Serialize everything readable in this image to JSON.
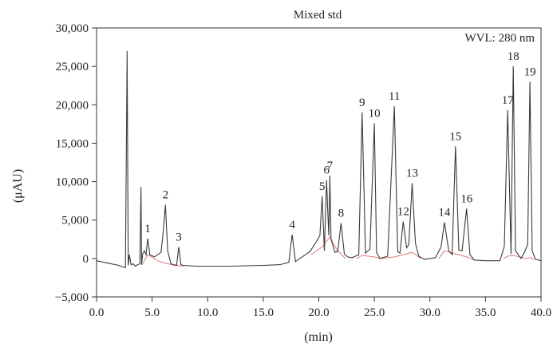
{
  "chart_data": {
    "type": "line",
    "title": "Mixed std",
    "annotation": "WVL: 280 nm",
    "xlabel": "(min)",
    "ylabel": "(μAU)",
    "xlim": [
      0,
      40
    ],
    "ylim": [
      -5000,
      30000
    ],
    "x_ticks": [
      "0.0",
      "5.0",
      "10.0",
      "15.0",
      "20.0",
      "25.0",
      "30.0",
      "35.0",
      "40.0"
    ],
    "x_tick_values": [
      0,
      5,
      10,
      15,
      20,
      25,
      30,
      35,
      40
    ],
    "y_ticks": [
      "−5,000",
      "0",
      "5,000",
      "10,000",
      "15,000",
      "20,000",
      "25,000",
      "30,000"
    ],
    "y_tick_values": [
      -5000,
      0,
      5000,
      10000,
      15000,
      20000,
      25000,
      30000
    ],
    "grid": false,
    "series": [
      {
        "x": [
          0.0,
          1.0,
          2.0,
          2.6,
          2.75,
          2.85,
          2.95,
          3.1,
          3.3,
          3.5,
          3.7,
          3.9,
          4.0,
          4.05,
          4.15,
          4.3,
          4.45,
          4.6,
          4.8,
          5.2,
          5.8,
          6.0,
          6.2,
          6.4,
          6.7,
          7.2,
          7.4,
          7.6,
          7.8,
          9.0,
          12.0,
          15.0,
          16.5,
          17.3,
          17.6,
          17.9,
          18.5,
          19.2,
          19.7,
          20.1,
          20.3,
          20.5,
          20.7,
          20.9,
          21.0,
          21.1,
          21.25,
          21.45,
          21.7,
          22.0,
          22.3,
          22.6,
          23.0,
          23.6,
          23.9,
          24.2,
          24.6,
          25.0,
          25.2,
          25.5,
          26.2,
          26.8,
          27.1,
          27.3,
          27.6,
          27.9,
          28.1,
          28.4,
          28.7,
          29.0,
          29.5,
          30.5,
          31.0,
          31.3,
          31.7,
          32.0,
          32.3,
          32.6,
          32.9,
          33.3,
          33.6,
          34.0,
          35.0,
          36.3,
          36.7,
          37.0,
          37.3,
          37.5,
          37.7,
          38.2,
          38.5,
          38.8,
          39.0,
          39.2,
          39.5,
          40.0
        ],
        "values": [
          -300,
          -600,
          -900,
          -1200,
          27000,
          -900,
          500,
          -800,
          -700,
          -1000,
          -800,
          -700,
          9300,
          -800,
          600,
          1000,
          500,
          2600,
          500,
          200,
          800,
          3500,
          7000,
          1000,
          -700,
          -900,
          1500,
          -800,
          -900,
          -1000,
          -1000,
          -900,
          -800,
          -500,
          3100,
          -400,
          200,
          900,
          2000,
          3000,
          8100,
          1000,
          10200,
          3000,
          10800,
          2500,
          1800,
          800,
          900,
          4600,
          600,
          200,
          100,
          500,
          19000,
          700,
          1200,
          17600,
          800,
          0,
          300,
          19800,
          900,
          700,
          4800,
          1400,
          1800,
          9800,
          2000,
          300,
          -100,
          100,
          1500,
          4700,
          1000,
          500,
          14600,
          1100,
          1000,
          6500,
          500,
          -200,
          -300,
          -300,
          1600,
          19300,
          600,
          25000,
          1000,
          0,
          800,
          1800,
          23000,
          1000,
          -100,
          -300
        ]
      }
    ],
    "peaks": [
      {
        "label": "1",
        "x": 4.6,
        "y": 2600
      },
      {
        "label": "2",
        "x": 6.2,
        "y": 7000
      },
      {
        "label": "3",
        "x": 7.4,
        "y": 1500
      },
      {
        "label": "4",
        "x": 17.6,
        "y": 3100
      },
      {
        "label": "5",
        "x": 20.3,
        "y": 8100
      },
      {
        "label": "6",
        "x": 20.7,
        "y": 10200
      },
      {
        "label": "7",
        "x": 21.0,
        "y": 10800
      },
      {
        "label": "8",
        "x": 22.0,
        "y": 4600
      },
      {
        "label": "9",
        "x": 23.9,
        "y": 19000
      },
      {
        "label": "10",
        "x": 25.0,
        "y": 17600
      },
      {
        "label": "11",
        "x": 26.8,
        "y": 19800
      },
      {
        "label": "12",
        "x": 27.6,
        "y": 4800
      },
      {
        "label": "13",
        "x": 28.4,
        "y": 9800
      },
      {
        "label": "14",
        "x": 31.3,
        "y": 4700
      },
      {
        "label": "15",
        "x": 32.3,
        "y": 14600
      },
      {
        "label": "16",
        "x": 33.3,
        "y": 6500
      },
      {
        "label": "17",
        "x": 37.0,
        "y": 19300
      },
      {
        "label": "18",
        "x": 37.5,
        "y": 25000
      },
      {
        "label": "19",
        "x": 39.0,
        "y": 23000
      }
    ],
    "baseline_segments": [
      {
        "x": [
          4.1,
          4.6,
          5.5,
          6.2,
          7.0,
          7.8
        ],
        "values": [
          -800,
          500,
          -300,
          -600,
          -900,
          -1000
        ]
      },
      {
        "x": [
          19.3,
          20.3,
          21.0,
          21.6,
          22.4
        ],
        "values": [
          500,
          1500,
          2800,
          1200,
          0
        ]
      },
      {
        "x": [
          23.4,
          23.9,
          25.0,
          25.6,
          26.8,
          27.6,
          28.4,
          29.2
        ],
        "values": [
          0,
          400,
          200,
          0,
          200,
          500,
          800,
          0
        ]
      },
      {
        "x": [
          30.8,
          31.3,
          32.3,
          33.3,
          34.0
        ],
        "values": [
          0,
          1000,
          600,
          200,
          -200
        ]
      },
      {
        "x": [
          36.6,
          37.0,
          37.5,
          38.1,
          38.6,
          39.0,
          39.4
        ],
        "values": [
          0,
          300,
          400,
          200,
          0,
          100,
          -100
        ]
      }
    ]
  }
}
